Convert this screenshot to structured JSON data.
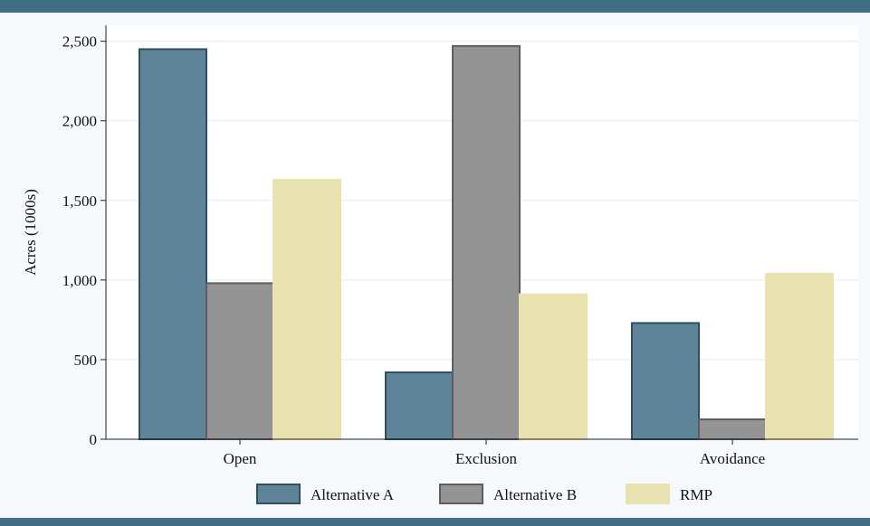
{
  "colors": {
    "border": "#3f6e85",
    "background": "#f5f9fb",
    "plot_area": "#ffffff",
    "gridline": "#e3ecf1",
    "axis": "#222222"
  },
  "chart_data": {
    "type": "bar",
    "title": "",
    "xlabel": "",
    "ylabel": "Acres (1000s)",
    "categories": [
      "Open",
      "Exclusion",
      "Avoidance"
    ],
    "series": [
      {
        "name": "Alternative A",
        "values": [
          2450,
          420,
          730
        ],
        "color": "#5f8499",
        "stroke": "#2f4f63"
      },
      {
        "name": "Alternative B",
        "values": [
          980,
          2470,
          125
        ],
        "color": "#949494",
        "stroke": "#5e5e5e"
      },
      {
        "name": "RMP",
        "values": [
          1630,
          910,
          1040
        ],
        "color": "#e8e2b0",
        "stroke": "#e8e2b0"
      }
    ],
    "ylim": [
      0,
      2600
    ],
    "yticks": [
      0,
      500,
      1000,
      1500,
      2000,
      2500
    ],
    "ytick_labels": [
      "0",
      "500",
      "1,000",
      "1,500",
      "2,000",
      "2,500"
    ],
    "grid": true,
    "legend_position": "bottom"
  }
}
